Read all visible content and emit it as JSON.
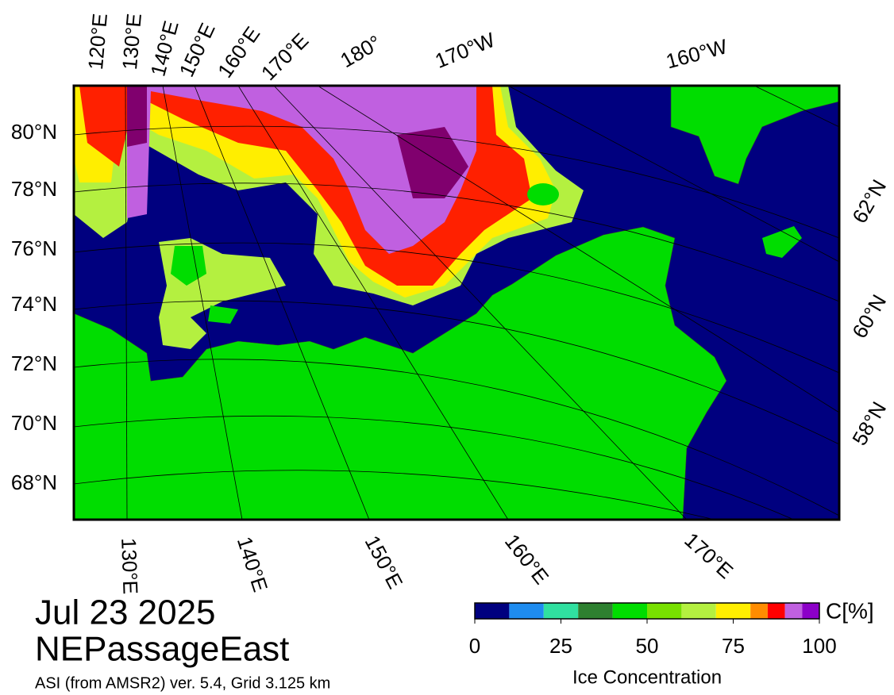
{
  "title": {
    "date": "Jul 23 2025",
    "region": "NEPassageEast",
    "source": "ASI (from AMSR2) ver. 5.4,  Grid 3.125 km"
  },
  "map": {
    "top_labels": [
      "120°E",
      "130°E",
      "140°E",
      "150°E",
      "160°E",
      "170°E",
      "180°",
      "170°W",
      "160°W"
    ],
    "left_labels": [
      "80°N",
      "78°N",
      "76°N",
      "74°N",
      "72°N",
      "70°N",
      "68°N"
    ],
    "right_labels": [
      "62°N",
      "60°N",
      "58°N"
    ],
    "bottom_labels": [
      "130°E",
      "140°E",
      "150°E",
      "160°E",
      "170°E"
    ]
  },
  "colorbar": {
    "label": "Ice Concentration",
    "unit": "C[%]",
    "lim": [
      0,
      100
    ],
    "ticks": [
      0,
      25,
      50,
      75,
      100
    ],
    "bounds": [
      0,
      10,
      20,
      30,
      40,
      50,
      60,
      70,
      80,
      85,
      90,
      95,
      100
    ],
    "colors": [
      "#00007f",
      "#1e8cf0",
      "#30e0a0",
      "#2e8030",
      "#00dd00",
      "#78e000",
      "#b4f040",
      "#ffee00",
      "#ff8c00",
      "#ff0000",
      "#c060e0",
      "#8c00c8"
    ]
  }
}
